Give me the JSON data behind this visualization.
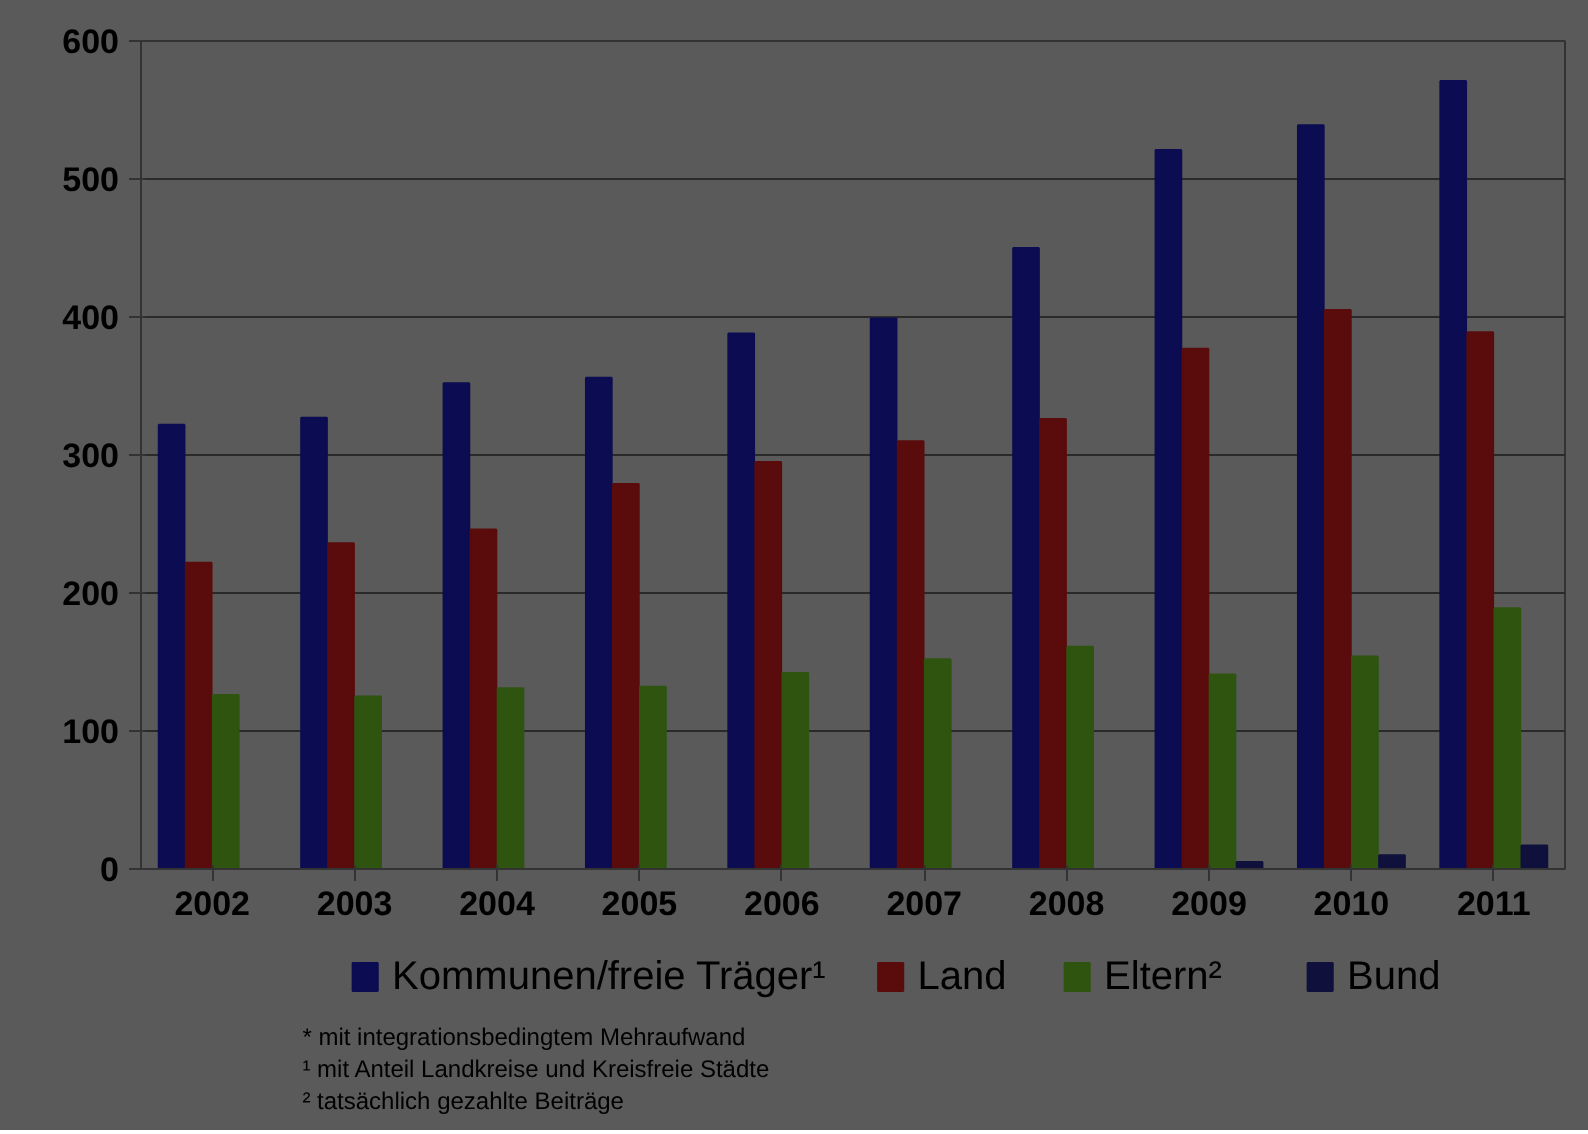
{
  "chart_data": {
    "type": "bar",
    "categories": [
      "2002",
      "2003",
      "2004",
      "2005",
      "2006",
      "2007",
      "2008",
      "2009",
      "2010",
      "2011"
    ],
    "series": [
      {
        "name": "Kommunen/freie Träger¹",
        "color": "#0c0c52",
        "values": [
          322,
          327,
          352,
          356,
          388,
          399,
          450,
          521,
          539,
          571
        ]
      },
      {
        "name": "Land",
        "color": "#5a0c0c",
        "values": [
          222,
          236,
          246,
          279,
          295,
          310,
          326,
          377,
          405,
          389
        ]
      },
      {
        "name": "Eltern²",
        "color": "#2e5410",
        "values": [
          126,
          125,
          131,
          132,
          142,
          152,
          161,
          141,
          154,
          189
        ]
      },
      {
        "name": "Bund",
        "color": "#10103c",
        "values": [
          null,
          null,
          null,
          null,
          null,
          null,
          null,
          5,
          10,
          17
        ]
      }
    ],
    "ylim": [
      0,
      600
    ],
    "yticks": [
      0,
      100,
      200,
      300,
      400,
      500,
      600
    ],
    "grid": "y",
    "legend": "bottom",
    "annotations": [
      "* mit integrationsbedingtem Mehraufwand",
      "¹ mit Anteil Landkreise und Kreisfreie Städte",
      "² tatsächlich gezahlte Beiträge"
    ]
  }
}
